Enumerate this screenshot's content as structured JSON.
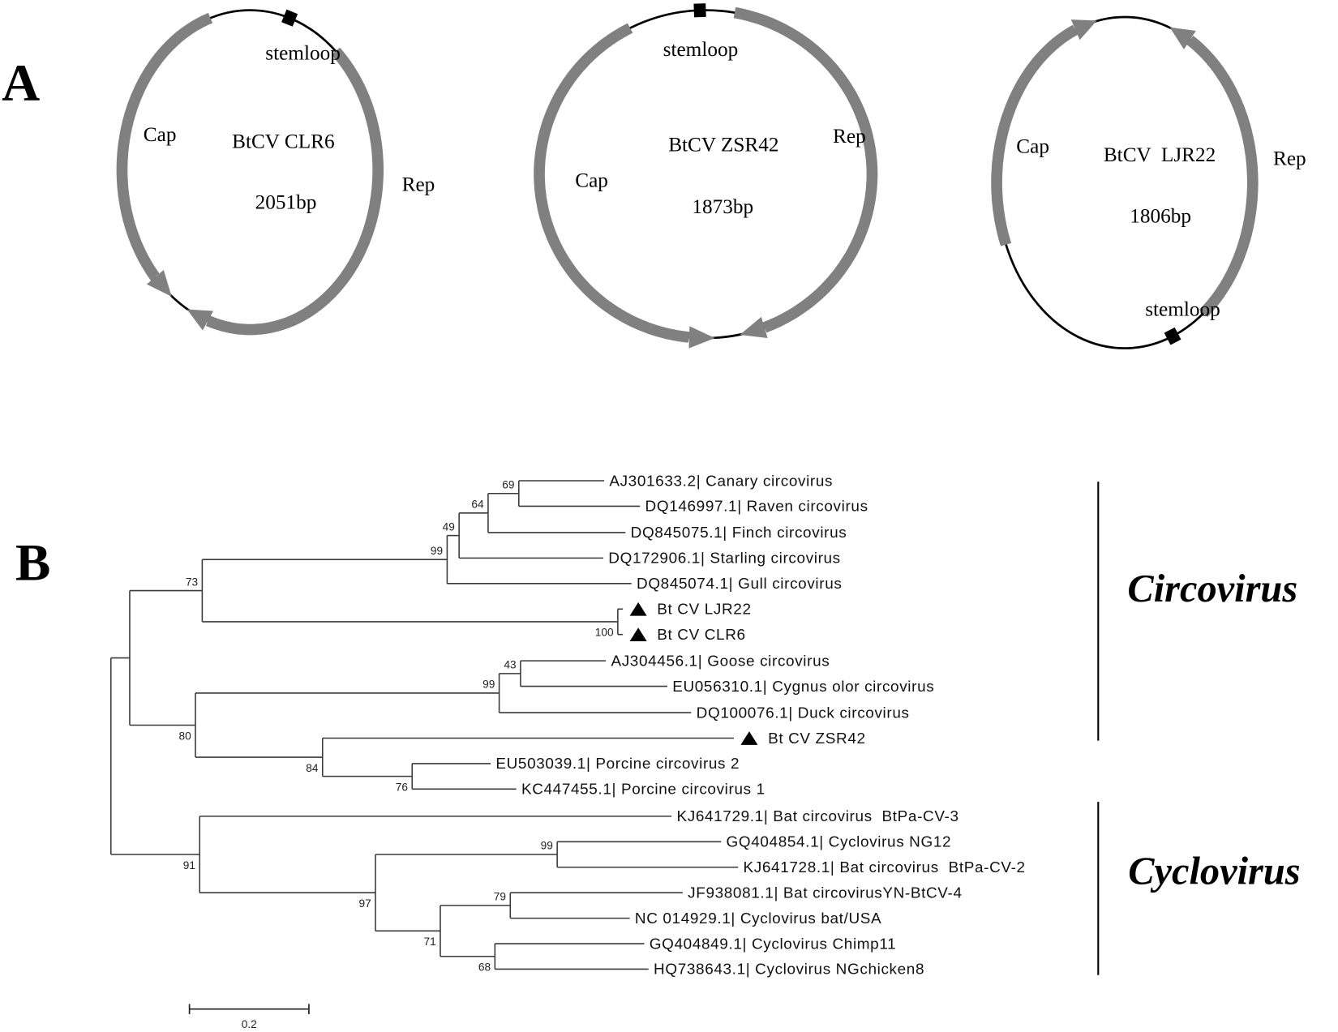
{
  "colors": {
    "gene_arrow": "#808080",
    "genome_line": "#000000",
    "tree_line": "#3a3a3a",
    "text": "#000000"
  },
  "panel_a": {
    "label": "A",
    "genomes": [
      {
        "name": "BtCV CLR6",
        "size": "2051bp",
        "stemloop": "stemloop",
        "cap": "Cap",
        "rep": "Rep"
      },
      {
        "name": "BtCV ZSR42",
        "size": "1873bp",
        "stemloop": "stemloop",
        "cap": "Cap",
        "rep": "Rep"
      },
      {
        "name": "BtCV  LJR22",
        "size": "1806bp",
        "stemloop": "stemloop",
        "cap": "Cap",
        "rep": "Rep"
      }
    ]
  },
  "panel_b": {
    "label": "B",
    "taxa": [
      {
        "label": "AJ301633.2| Canary circovirus"
      },
      {
        "label": "DQ146997.1| Raven circovirus"
      },
      {
        "label": "DQ845075.1| Finch circovirus"
      },
      {
        "label": "DQ172906.1| Starling circovirus"
      },
      {
        "label": "DQ845074.1| Gull circovirus"
      },
      {
        "label": "Bt CV LJR22",
        "marker": "triangle-icon"
      },
      {
        "label": "Bt CV CLR6",
        "marker": "triangle-icon"
      },
      {
        "label": "AJ304456.1| Goose circovirus"
      },
      {
        "label": "EU056310.1| Cygnus olor circovirus"
      },
      {
        "label": "DQ100076.1| Duck circovirus"
      },
      {
        "label": "Bt CV ZSR42",
        "marker": "triangle-icon"
      },
      {
        "label": "EU503039.1| Porcine circovirus 2"
      },
      {
        "label": "KC447455.1| Porcine circovirus 1"
      },
      {
        "label": "KJ641729.1| Bat circovirus  BtPa-CV-3"
      },
      {
        "label": "GQ404854.1| Cyclovirus NG12"
      },
      {
        "label": "KJ641728.1| Bat circovirus  BtPa-CV-2"
      },
      {
        "label": "JF938081.1| Bat circovirusYN-BtCV-4"
      },
      {
        "label": "NC 014929.1| Cyclovirus bat/USA"
      },
      {
        "label": "GQ404849.1| Cyclovirus Chimp11"
      },
      {
        "label": "HQ738643.1| Cyclovirus NGchicken8"
      }
    ],
    "bootstrap": [
      "69",
      "64",
      "49",
      "99",
      "73",
      "100",
      "43",
      "99",
      "80",
      "84",
      "76",
      "91",
      "99",
      "97",
      "79",
      "71",
      "68"
    ],
    "groups": [
      {
        "name": "Circovirus"
      },
      {
        "name": "Cyclovirus"
      }
    ],
    "scale_bar": "0.2"
  }
}
